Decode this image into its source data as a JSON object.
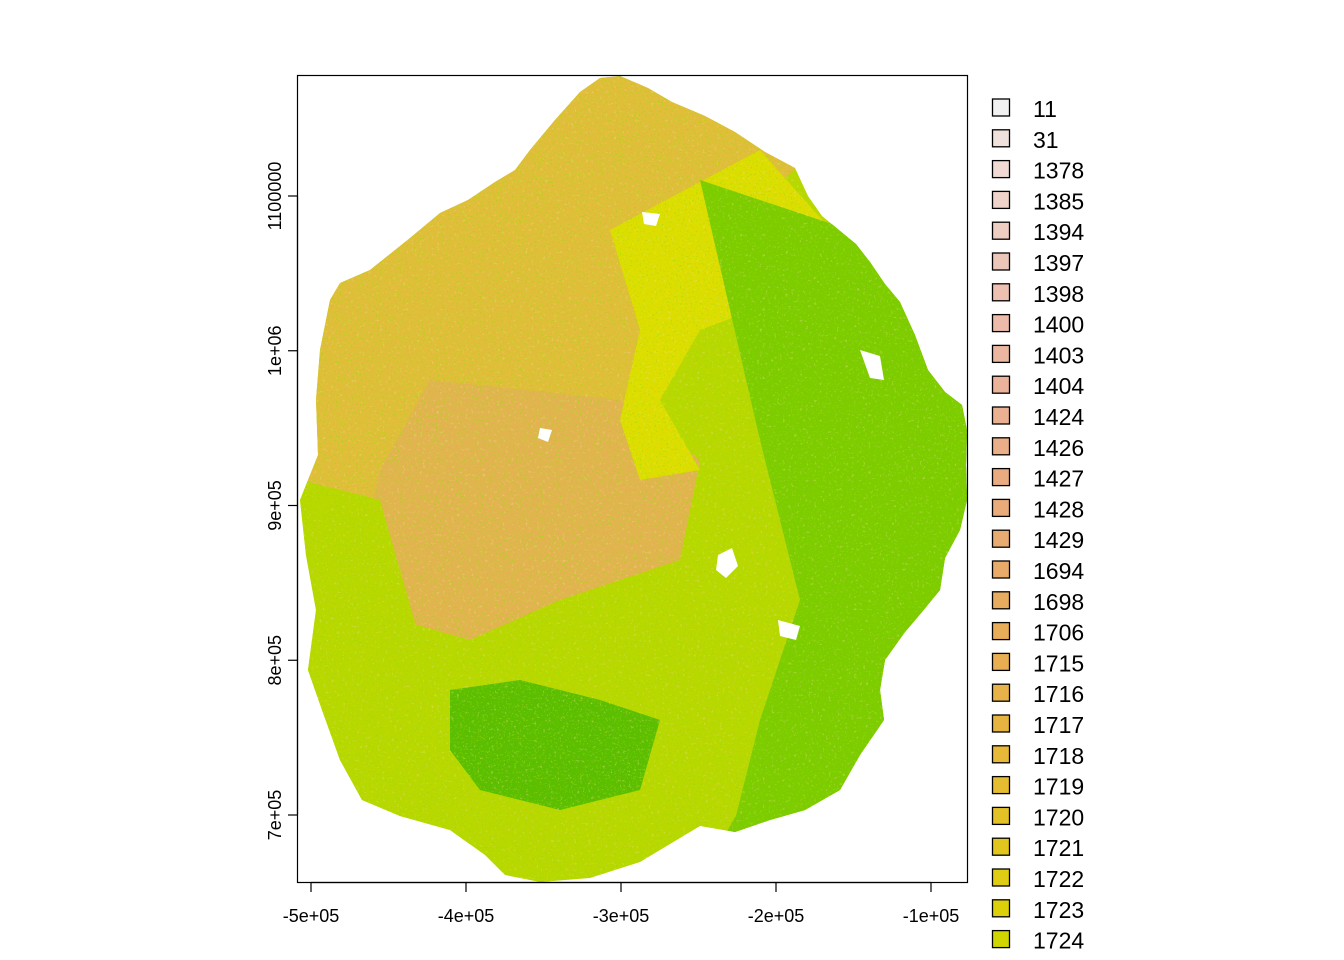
{
  "chart_data": {
    "type": "raster-map",
    "x_axis": {
      "ticks": [
        {
          "value": -500000,
          "label": "-5e+05"
        },
        {
          "value": -400000,
          "label": "-4e+05"
        },
        {
          "value": -300000,
          "label": "-3e+05"
        },
        {
          "value": -200000,
          "label": "-2e+05"
        },
        {
          "value": -100000,
          "label": "-1e+05"
        }
      ],
      "range": [
        -509000,
        -76000
      ]
    },
    "y_axis": {
      "ticks": [
        {
          "value": 700000,
          "label": "7e+05"
        },
        {
          "value": 800000,
          "label": "8e+05"
        },
        {
          "value": 900000,
          "label": "9e+05"
        },
        {
          "value": 1000000,
          "label": "1e+06"
        },
        {
          "value": 1100000,
          "label": "1100000"
        }
      ],
      "range": [
        657000,
        1177000
      ]
    },
    "legend": {
      "position": "right",
      "entries": [
        {
          "label": "11",
          "color": "#F2F2F2"
        },
        {
          "label": "31",
          "color": "#F1E1DC"
        },
        {
          "label": "1378",
          "color": "#F0DAD3"
        },
        {
          "label": "1385",
          "color": "#EFD3CB"
        },
        {
          "label": "1394",
          "color": "#EECDC2"
        },
        {
          "label": "1397",
          "color": "#EDC6BA"
        },
        {
          "label": "1398",
          "color": "#EDC0B1"
        },
        {
          "label": "1400",
          "color": "#ECBBA9"
        },
        {
          "label": "1403",
          "color": "#EBB7A1"
        },
        {
          "label": "1404",
          "color": "#EBB399"
        },
        {
          "label": "1424",
          "color": "#EAB091"
        },
        {
          "label": "1426",
          "color": "#EAAE89"
        },
        {
          "label": "1427",
          "color": "#E9AC81"
        },
        {
          "label": "1428",
          "color": "#E9AB79"
        },
        {
          "label": "1429",
          "color": "#E8AB71"
        },
        {
          "label": "1694",
          "color": "#E8AB69"
        },
        {
          "label": "1698",
          "color": "#E8AC61"
        },
        {
          "label": "1706",
          "color": "#E7AD59"
        },
        {
          "label": "1715",
          "color": "#E7AF51"
        },
        {
          "label": "1716",
          "color": "#E6B249"
        },
        {
          "label": "1717",
          "color": "#E6B541"
        },
        {
          "label": "1718",
          "color": "#E6B938"
        },
        {
          "label": "1719",
          "color": "#E5BD30"
        },
        {
          "label": "1720",
          "color": "#E3C227"
        },
        {
          "label": "1721",
          "color": "#E1C61E"
        },
        {
          "label": "1722",
          "color": "#DFCC14"
        },
        {
          "label": "1723",
          "color": "#DBD00A"
        },
        {
          "label": "1724",
          "color": "#D0D400"
        }
      ]
    },
    "map_colors": {
      "dry_orange": "#E0BE3A",
      "tan": "#E2B450",
      "yellow": "#DDDE00",
      "yellow_green": "#B8D800",
      "bright_green": "#7CCC00",
      "dark_green": "#5BBE00",
      "no_data": "#FFFFFF"
    }
  }
}
